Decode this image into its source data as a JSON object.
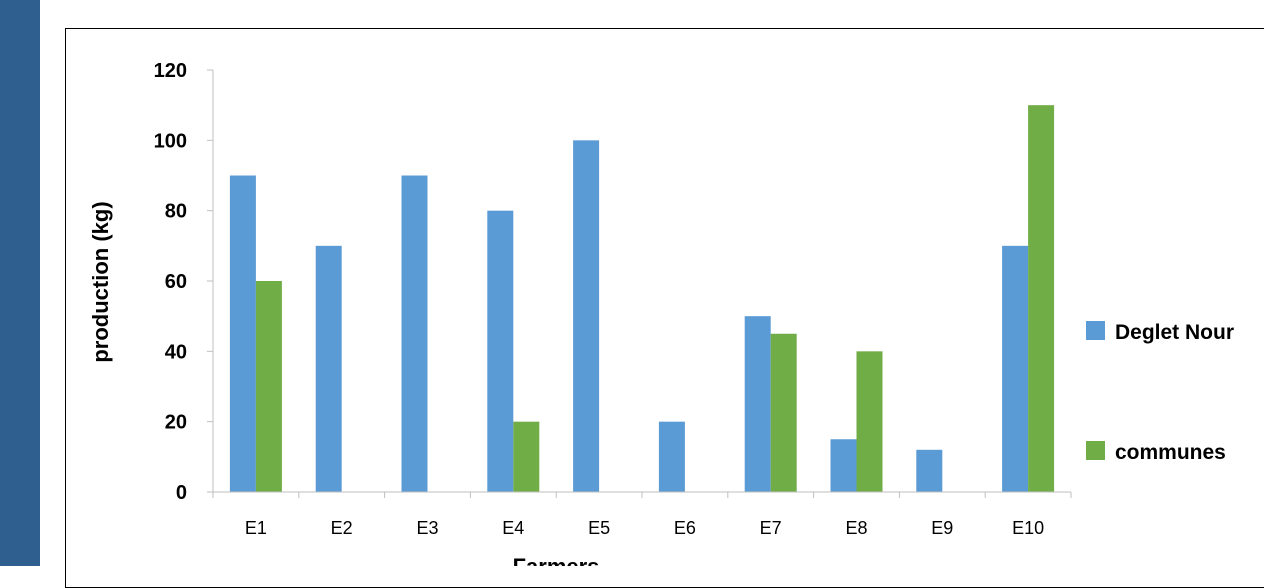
{
  "colors": {
    "sidebar": "#2e5f8e",
    "series_1": "#5b9bd5",
    "series_2": "#70ad47"
  },
  "chart_data": {
    "type": "bar",
    "categories": [
      "E1",
      "E2",
      "E3",
      "E4",
      "E5",
      "E6",
      "E7",
      "E8",
      "E9",
      "E10"
    ],
    "series": [
      {
        "name": "Deglet Nour",
        "color": "#5b9bd5",
        "values": [
          90,
          70,
          90,
          80,
          100,
          20,
          50,
          15,
          12,
          70
        ]
      },
      {
        "name": "communes",
        "color": "#70ad47",
        "values": [
          60,
          0,
          0,
          20,
          0,
          0,
          45,
          40,
          0,
          110
        ]
      }
    ],
    "xlabel": "Farmers",
    "ylabel": "production (kg)",
    "ylim": [
      0,
      120
    ],
    "yticks": [
      0,
      20,
      40,
      60,
      80,
      100,
      120
    ],
    "grid": false,
    "legend_position": "right"
  }
}
